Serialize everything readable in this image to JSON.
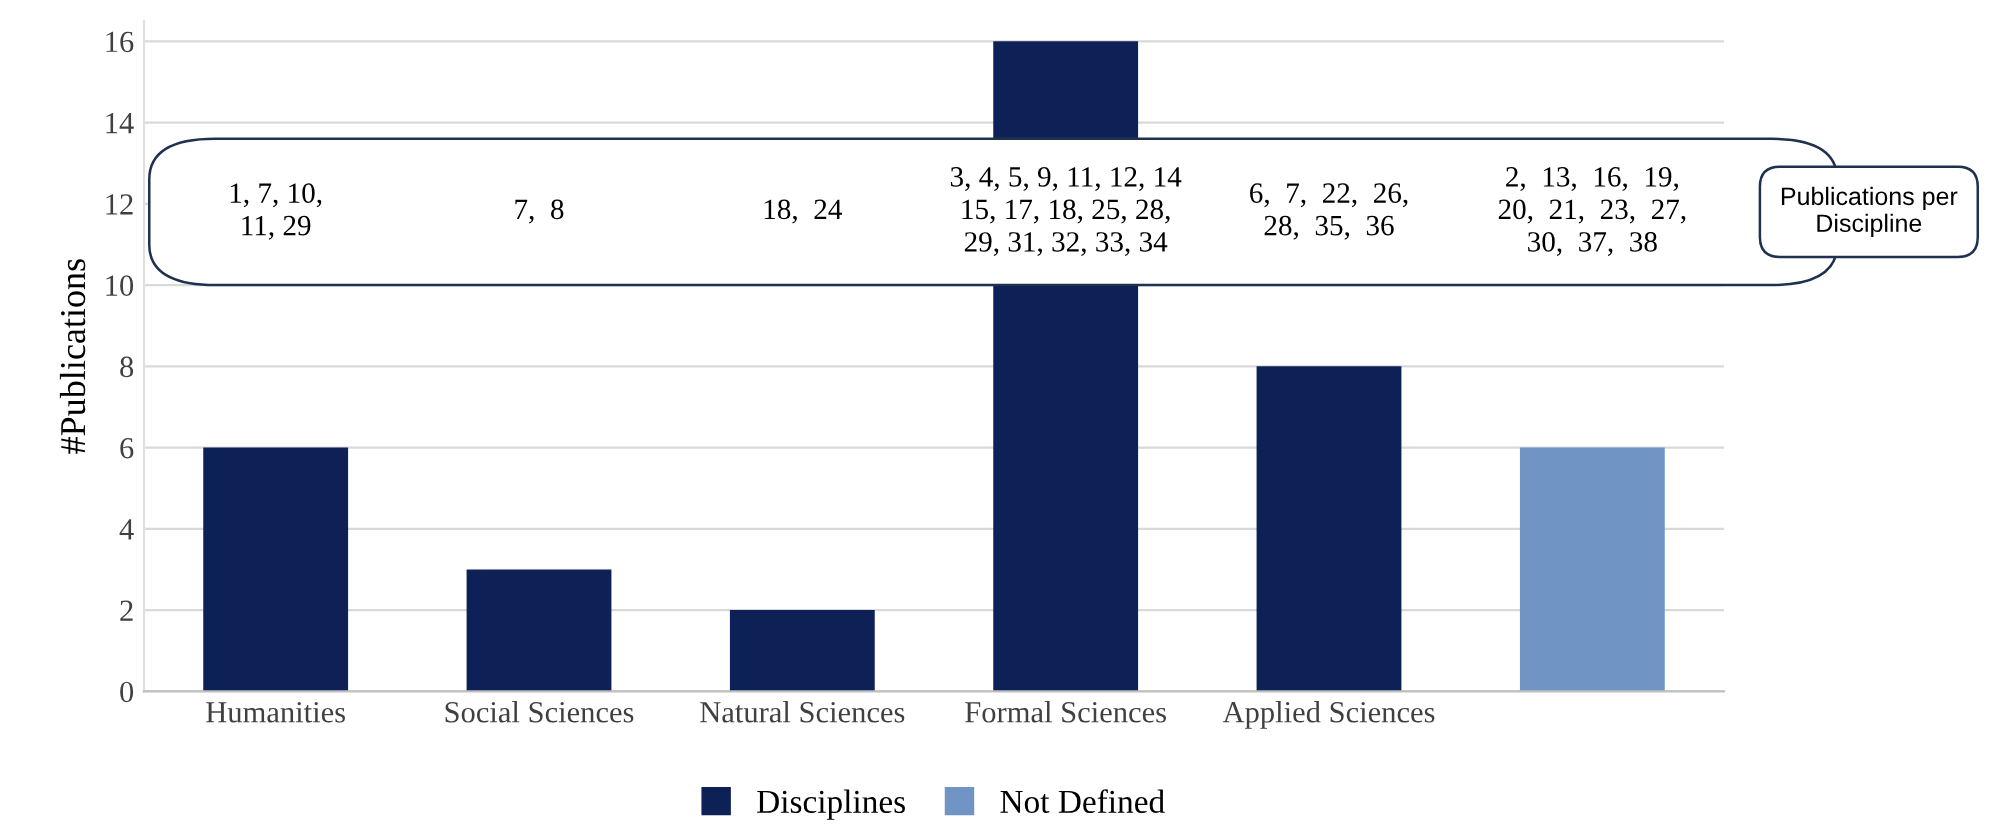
{
  "chart_data": {
    "type": "bar",
    "ylabel": "#Publications",
    "categories": [
      "Humanities",
      "Social Sciences",
      "Natural Sciences",
      "Formal Sciences",
      "Applied Sciences",
      null
    ],
    "series": [
      {
        "name": "Disciplines",
        "color": "#0e2157",
        "values": [
          6,
          3,
          2,
          16,
          8,
          null
        ]
      },
      {
        "name": "Not Defined",
        "color": "#7094c3",
        "values": [
          null,
          null,
          null,
          null,
          null,
          6
        ]
      }
    ],
    "ylim": [
      0,
      16.5
    ],
    "yticks": [
      0,
      2,
      4,
      6,
      8,
      10,
      12,
      14,
      16
    ],
    "grid": "y",
    "legend": "bottom",
    "annotations": [
      "1, 7, 10,\n11, 29",
      "7,  8",
      "18,  24",
      "3, 4, 5, 9, 11, 12, 14\n15, 17, 18, 25, 28,\n29, 31, 32, 33, 34",
      "6,  7,  22,  26,\n28,  35,  36",
      "2,  13,  16,  19,\n20,  21,  23,  27,\n30,  37,  38",
      "Publications per\nDiscipline"
    ]
  }
}
